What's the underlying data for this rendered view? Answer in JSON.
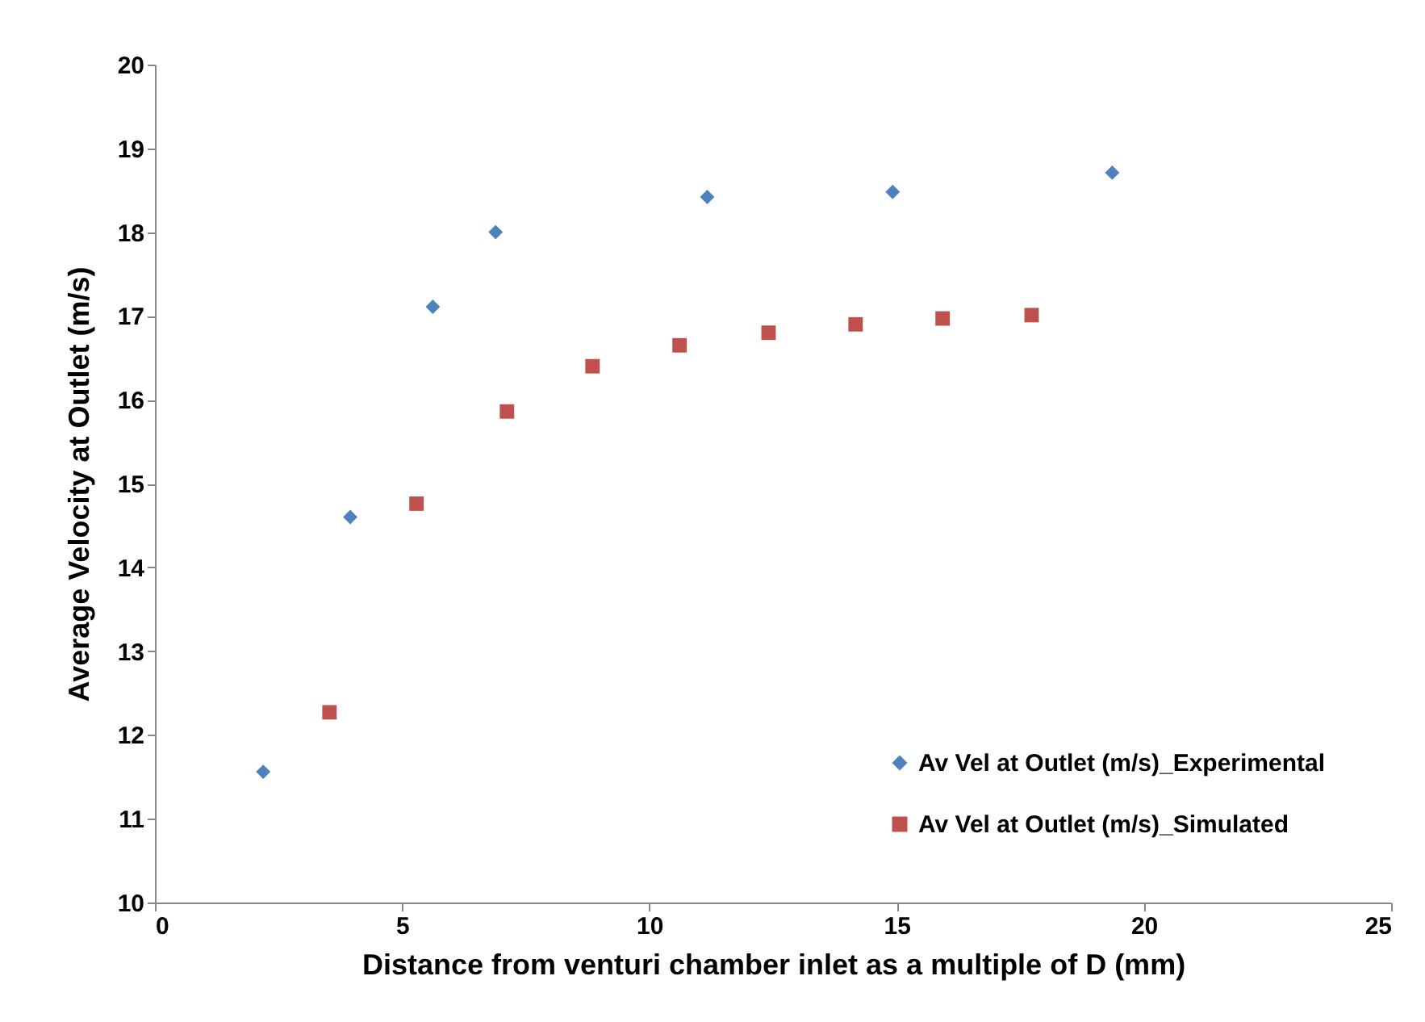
{
  "chart_data": {
    "type": "scatter",
    "xlabel": "Distance from venturi chamber inlet as a multiple of D (mm)",
    "ylabel": "Average Velocity at Outlet (m/s)",
    "xlim": [
      0,
      25
    ],
    "xticks": [
      0,
      5,
      10,
      15,
      20,
      25
    ],
    "ylim": [
      10,
      20
    ],
    "yticks": [
      10,
      11,
      12,
      13,
      14,
      15,
      16,
      17,
      18,
      19,
      20
    ],
    "grid": false,
    "legend": "bottom right",
    "series": [
      {
        "name": "Av Vel at Outlet (m/s)_Experimental",
        "color": "#4f81bd",
        "marker": "diamond",
        "x": [
          2.19,
          3.95,
          5.62,
          6.89,
          11.17,
          14.92,
          19.36
        ],
        "values": [
          11.56,
          14.6,
          17.11,
          18.0,
          18.42,
          18.48,
          18.71
        ]
      },
      {
        "name": "Av Vel at Outlet (m/s)_Simulated",
        "color": "#c0504d",
        "marker": "square",
        "x": [
          3.53,
          5.29,
          7.12,
          8.85,
          10.61,
          12.41,
          14.17,
          15.93,
          17.73
        ],
        "values": [
          12.27,
          14.76,
          15.86,
          16.4,
          16.65,
          16.8,
          16.9,
          16.97,
          17.01
        ]
      }
    ]
  }
}
